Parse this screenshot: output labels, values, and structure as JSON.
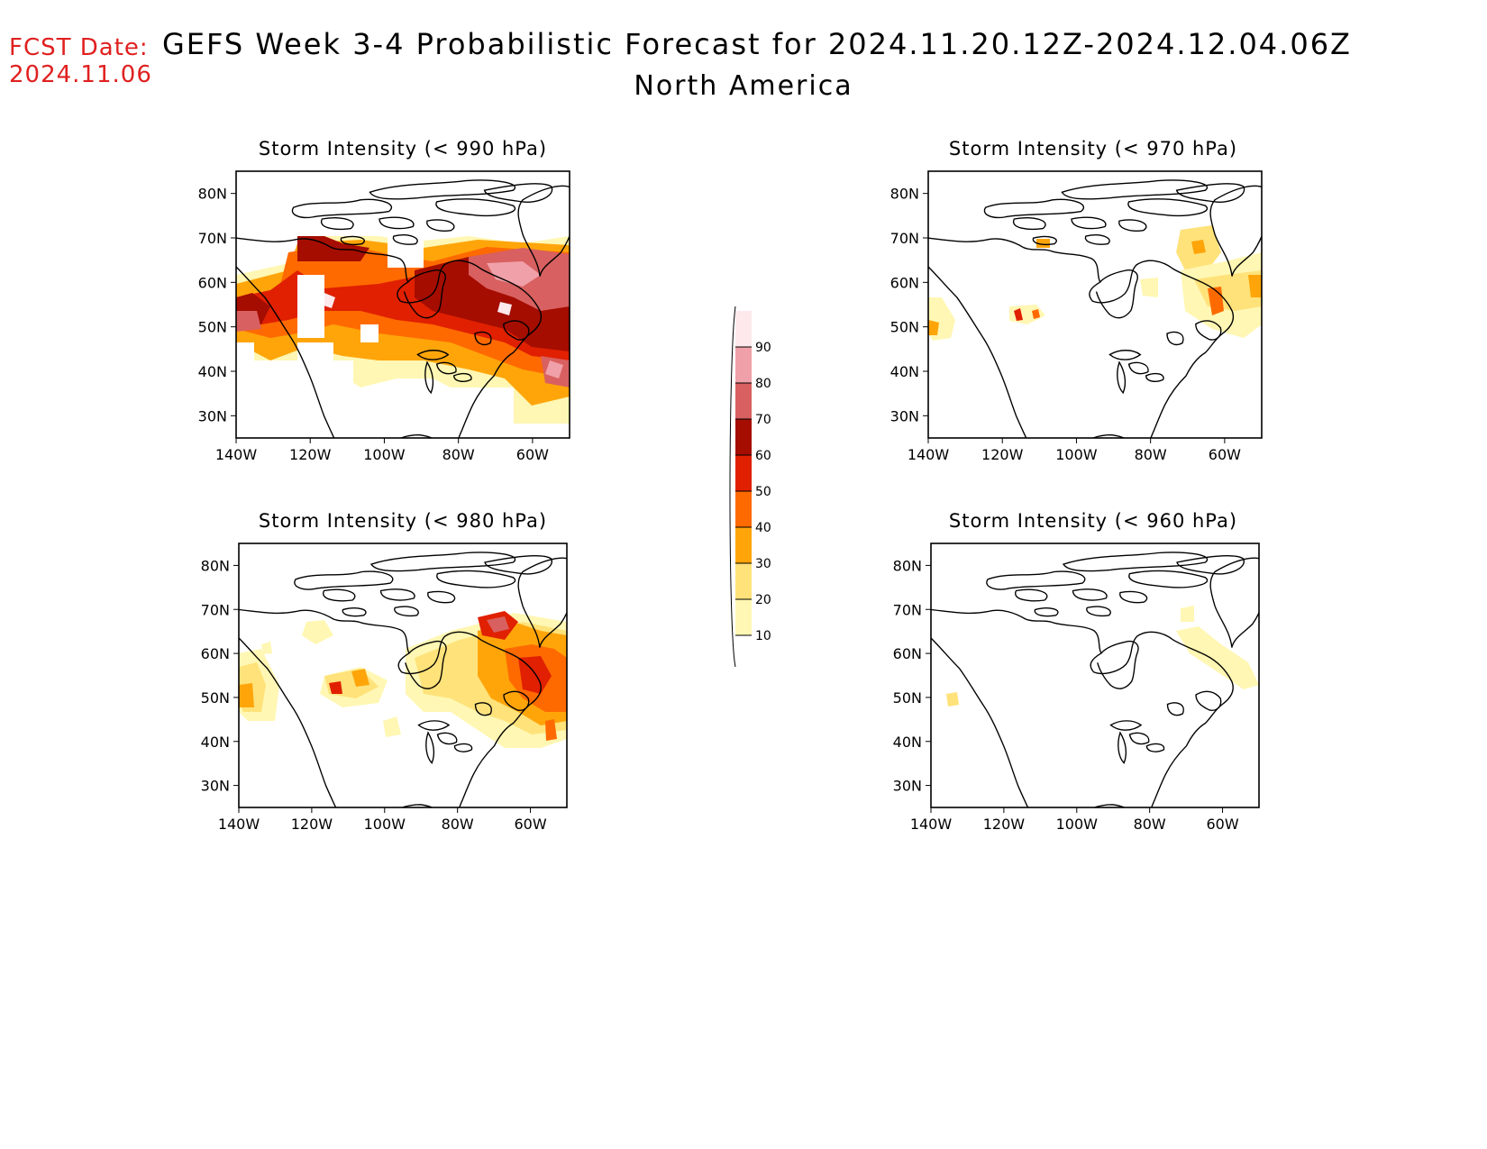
{
  "header": {
    "fcst_label": "FCST Date:",
    "fcst_date": "2024.11.06",
    "title": "GEFS Week 3-4 Probabilistic Forecast for 2024.11.20.12Z-2024.12.04.06Z",
    "subtitle": "North America"
  },
  "panels": [
    {
      "id": "p990",
      "title": "Storm Intensity (< 990 hPa)"
    },
    {
      "id": "p970",
      "title": "Storm Intensity (< 970 hPa)"
    },
    {
      "id": "p980",
      "title": "Storm Intensity (< 980 hPa)"
    },
    {
      "id": "p960",
      "title": "Storm Intensity (< 960 hPa)"
    }
  ],
  "axes": {
    "lat_ticks": [
      "30N",
      "40N",
      "50N",
      "60N",
      "70N",
      "80N"
    ],
    "lon_ticks": [
      "140W",
      "120W",
      "100W",
      "80W",
      "60W"
    ]
  },
  "colorbar": {
    "levels": [
      "10",
      "20",
      "30",
      "40",
      "50",
      "60",
      "70",
      "80",
      "90"
    ],
    "colors": [
      "#fff7b3",
      "#ffe27a",
      "#ffa50a",
      "#ff6a00",
      "#e02000",
      "#a50d00",
      "#d86060",
      "#f0a0a8",
      "#fde8ec"
    ]
  }
}
